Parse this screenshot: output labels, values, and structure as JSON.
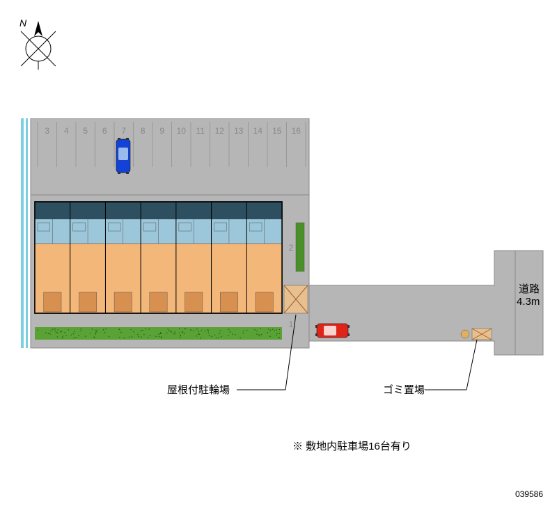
{
  "compass": {
    "north_label": "N"
  },
  "parking": {
    "slots": [
      "3",
      "4",
      "5",
      "6",
      "7",
      "8",
      "9",
      "10",
      "11",
      "12",
      "13",
      "14",
      "15",
      "16"
    ],
    "slot_color": "#b6b6b6",
    "line_color": "#999",
    "car_blue_slot_index": 4,
    "car_blue_color": "#1442d6"
  },
  "side_slots": {
    "labels": [
      "2",
      "1"
    ],
    "car_red_color": "#e02418"
  },
  "building": {
    "unit_count": 7,
    "orange": "#f4b77a",
    "blue": "#9cc6d9",
    "shadow": "#1a3a4a",
    "grass_color": "#5aa236"
  },
  "road": {
    "label_line1": "道路",
    "label_line2": "4.3m",
    "fill": "#b6b6b6"
  },
  "labels": {
    "bike_parking": "屋根付駐輪場",
    "garbage": "ゴミ置場"
  },
  "note": "※  敷地内駐車場16台有り",
  "serial": "039586",
  "colors": {
    "site_fill": "#b6b6b6",
    "left_stripe1": "#7dd0e0",
    "left_stripe2": "#ffffff",
    "hatch": "#c9844a"
  }
}
